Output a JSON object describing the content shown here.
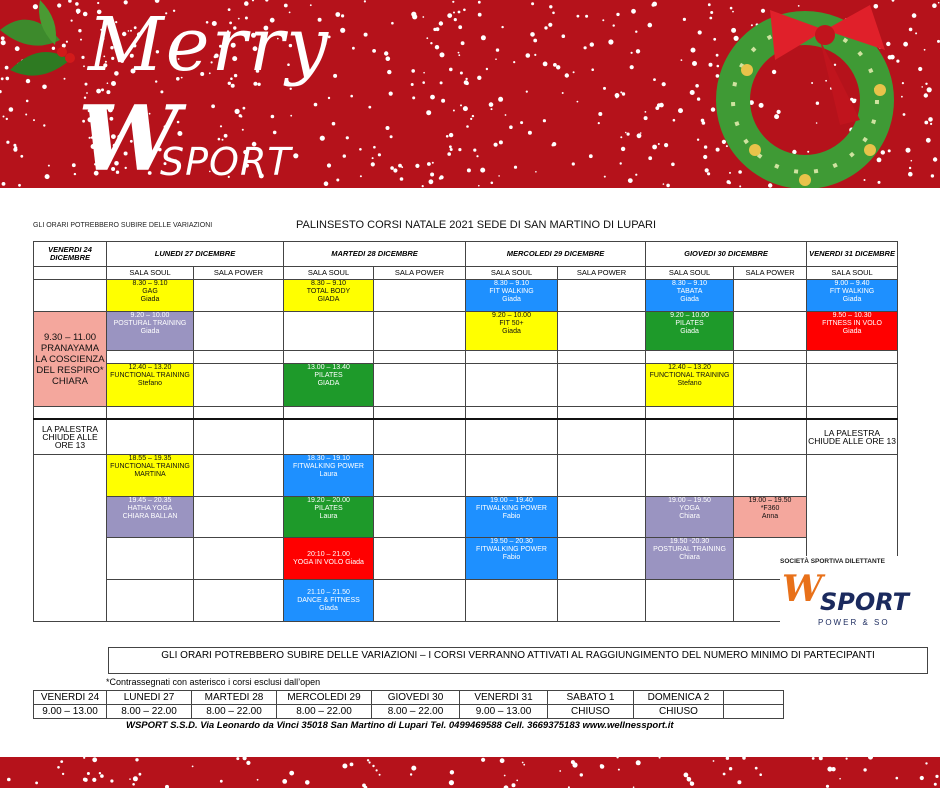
{
  "banner": {
    "merry": "Merry",
    "w": "W",
    "sport": "SPORT"
  },
  "note_top": "GLI ORARI POTREBBERO SUBIRE DELLE VARIAZIONI",
  "title": "PALINSESTO CORSI NATALE 2021 SEDE DI SAN MARTINO DI LUPARI",
  "days": {
    "ven24": "VENERDI 24 DICEMBRE",
    "lun27": "LUNEDI 27 DICEMBRE",
    "mar28": "MARTEDI 28 DICEMBRE",
    "mer29": "MERCOLEDI 29 DICEMBRE",
    "gio30": "GIOVEDI 30 DICEMBRE",
    "ven31": "VENERDI 31 DICEMBRE"
  },
  "rooms": {
    "soul": "SALA SOUL",
    "power": "SALA POWER"
  },
  "classes": {
    "lun_gag": {
      "time": "8.30 – 9.10",
      "name": "GAG",
      "coach": "Giada"
    },
    "mar_tb": {
      "time": "8.30 – 9.10",
      "name": "TOTAL BODY",
      "coach": "GIADA"
    },
    "mer_fw": {
      "time": "8.30 – 9.10",
      "name": "FIT WALKING",
      "coach": "Giada"
    },
    "gio_tab": {
      "time": "8.30 – 9.10",
      "name": "TABATA",
      "coach": "Giada"
    },
    "ven31_fw": {
      "time": "9.00 – 9.40",
      "name": "FIT WALKING",
      "coach": "Giada"
    },
    "ven24_pr": {
      "time": "9.30 – 11.00",
      "name": "PRANAYAMA LA COSCIENZA DEL RESPIRO*",
      "coach": "CHIARA"
    },
    "lun_pt": {
      "time": "9.20 – 10.00",
      "name": "POSTURAL TRAINING",
      "coach": "Giada"
    },
    "mer_f50": {
      "time": "9.20 – 10.00",
      "name": "FIT 50+",
      "coach": "Giada"
    },
    "gio_pil": {
      "time": "9.20 – 10.00",
      "name": "PILATES",
      "coach": "Giada"
    },
    "ven31_fiv": {
      "time": "9.50 – 10.30",
      "name": "FITNESS IN VOLO",
      "coach": "Giada"
    },
    "lun_ft": {
      "time": "12.40 – 13.20",
      "name": "FUNCTIONAL TRAINING",
      "coach": "Stefano"
    },
    "mar_pil": {
      "time": "13.00 – 13.40",
      "name": "PILATES",
      "coach": "GIADA"
    },
    "gio_ft": {
      "time": "12.40 – 13.20",
      "name": "FUNCTIONAL TRAINING",
      "coach": "Stefano"
    },
    "lun_ft2": {
      "time": "18.55 – 19.35",
      "name": "FUNCTIONAL TRAINING",
      "coach": "MARTINA"
    },
    "mar_fwp": {
      "time": "18.30 – 19.10",
      "name": "FITWALKING POWER",
      "coach": "Laura"
    },
    "lun_hy": {
      "time": "19.45 – 20.35",
      "name": "HATHA YOGA",
      "coach": "CHIARA BALLAN"
    },
    "mar_pil2": {
      "time": "19.20 – 20.00",
      "name": "PILATES",
      "coach": "Laura"
    },
    "mer_fwp": {
      "time": "19.00 – 19.40",
      "name": "FITWALKING POWER",
      "coach": "Fabio"
    },
    "gio_yoga": {
      "time": "19.00 – 19.50",
      "name": "YOGA",
      "coach": "Chiara"
    },
    "gio_f360": {
      "time": "19.00 – 19.50",
      "name": "*F360",
      "coach": "Anna"
    },
    "mar_yiv": {
      "time": "20:10 – 21.00",
      "name": "YOGA IN VOLO Giada"
    },
    "mer_fwp2": {
      "time": "19.50 – 20.30",
      "name": "FITWALKING POWER",
      "coach": "Fabio"
    },
    "gio_pt": {
      "time": "19.50 -20.30",
      "name": "POSTURAL TRAINING",
      "coach": "Chiara"
    },
    "mar_df": {
      "time": "21.10 – 21.50",
      "name": "DANCE & FITNESS",
      "coach": "Giada"
    }
  },
  "closure": "LA PALESTRA CHIUDE ALLE ORE 13",
  "notice": "GLI ORARI POTREBBERO SUBIRE DELLE VARIAZIONI – I CORSI VERRANNO ATTIVATI AL RAGGIUNGIMENTO DEL NUMERO MINIMO DI PARTECIPANTI",
  "asterisk_note": "*Contrassegnati con asterisco i corsi esclusi dall’open",
  "hours": {
    "days": [
      "VENERDI 24",
      "LUNEDI 27",
      "MARTEDI 28",
      "MERCOLEDI 29",
      "GIOVEDI 30",
      "VENERDI 31",
      "SABATO 1",
      "DOMENICA 2"
    ],
    "times": [
      "9.00 – 13.00",
      "8.00 – 22.00",
      "8.00 – 22.00",
      "8.00 – 22.00",
      "8.00 – 22.00",
      "9.00 – 13.00",
      "CHIUSO",
      "CHIUSO"
    ]
  },
  "footer": "WSPORT S.S.D. Via Leonardo da Vinci 35018  San Martino di Lupari   Tel.  0499469588 Cell. 3669375183  www.wellnessport.it",
  "corner_logo": {
    "sd": "SOCIETÀ SPORTIVA DILETTANTE",
    "w": "W",
    "sport": "SPORT",
    "power": "POWER & SO"
  }
}
